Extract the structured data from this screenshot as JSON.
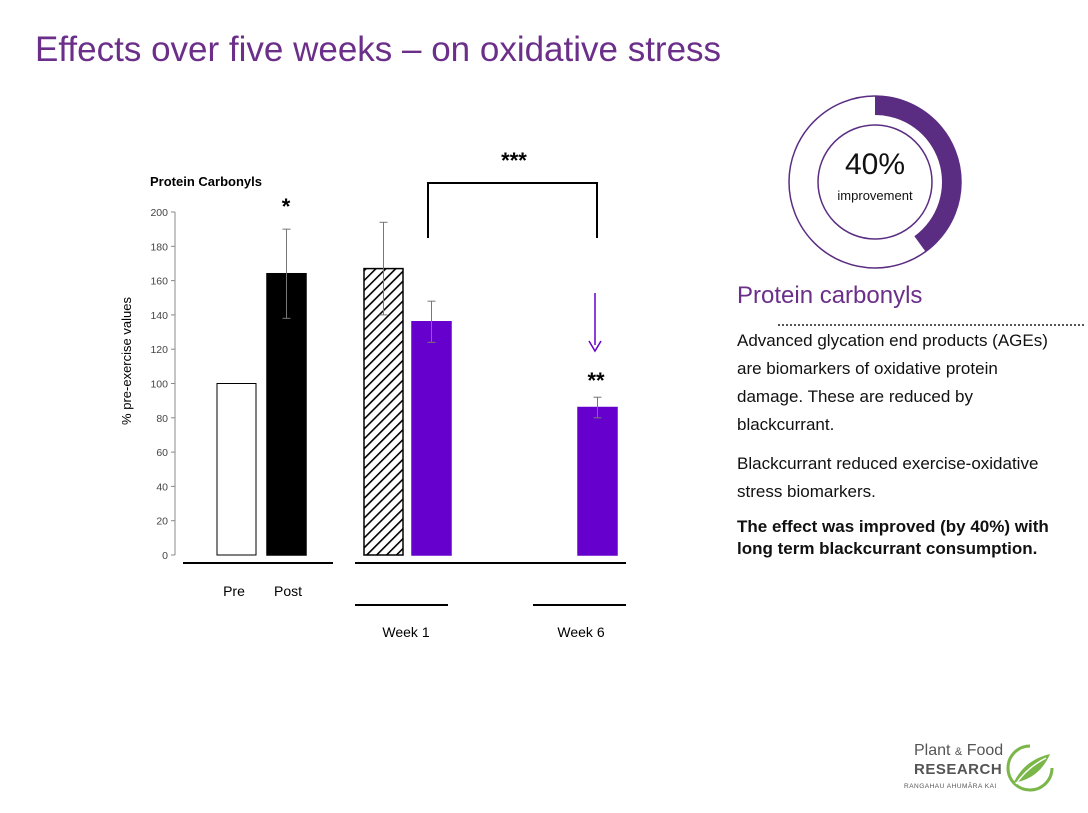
{
  "slide": {
    "title": "Effects over five weeks – on oxidative stress"
  },
  "chart_data": {
    "type": "bar",
    "title": "Protein Carbonyls",
    "ylabel": "% pre-exercise values",
    "ylim": [
      0,
      200
    ],
    "yticks": [
      "0",
      "20",
      "40",
      "60",
      "80",
      "100",
      "120",
      "140",
      "160",
      "180",
      "200"
    ],
    "groups": [
      {
        "label": "",
        "categories": [
          "Pre",
          "Post"
        ]
      },
      {
        "label": "Week 1",
        "categories": [
          "",
          ""
        ]
      },
      {
        "label": "Week 6",
        "categories": [
          "",
          ""
        ]
      }
    ],
    "bars": [
      {
        "group": 0,
        "category": "Pre",
        "value": 100,
        "error": null,
        "fill": "white"
      },
      {
        "group": 0,
        "category": "Post",
        "value": 164,
        "error": 26,
        "fill": "black"
      },
      {
        "group": 1,
        "category": "",
        "value": 167,
        "error": 27,
        "fill": "hatched"
      },
      {
        "group": 1,
        "category": "",
        "value": 136,
        "error": 12,
        "fill": "purple"
      },
      {
        "group": 2,
        "category": "",
        "value": 86,
        "error": 6,
        "fill": "purple"
      }
    ],
    "annotations": {
      "post_significance": "*",
      "bracket_significance": "***",
      "week6_significance": "**"
    },
    "colors": {
      "purple": "#6600cc",
      "black": "#000000",
      "white": "#ffffff"
    }
  },
  "donut": {
    "value_percent": 40,
    "value_label": "40%",
    "sub_label": "improvement",
    "color": "#5b2d82"
  },
  "info": {
    "section_title": "Protein carbonyls",
    "paragraph1": "Advanced glycation end products (AGEs) are biomarkers of oxidative protein damage. These are reduced by blackcurrant.",
    "paragraph2": "Blackcurrant reduced exercise-oxidative stress biomarkers.",
    "paragraph3": "The effect was improved (by 40%) with long term blackcurrant consumption."
  },
  "logo": {
    "line1": "Plant",
    "amp": "&",
    "line1b": "Food",
    "line2": "RESEARCH",
    "tagline": "RANGAHAU AHUMĀRA KAI"
  }
}
